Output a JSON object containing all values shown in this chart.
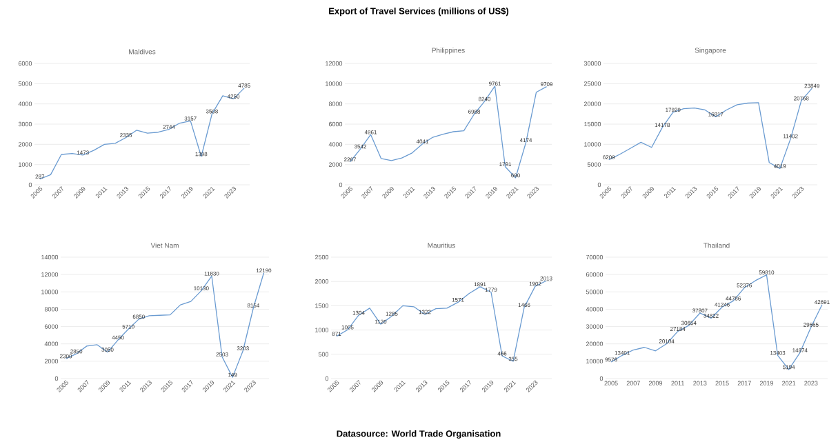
{
  "chart_data": [
    {
      "type": "line",
      "title": "Maldives",
      "annotations": [
        "Export of Travel Services (millions of US$)",
        "Datasource: World Trade Organisation"
      ],
      "categories": [
        "2005",
        null,
        "2007",
        null,
        "2009",
        null,
        "2011",
        null,
        "2013",
        null,
        "2015",
        null,
        "2017",
        null,
        "2019",
        null,
        "2021",
        null,
        "2023",
        null
      ],
      "values": [
        287,
        500,
        1500,
        1550,
        1473,
        1700,
        2000,
        2050,
        2335,
        2700,
        2550,
        2600,
        2744,
        3050,
        3157,
        1398,
        3508,
        4400,
        4250,
        4785
      ],
      "value_labels": [
        "287",
        null,
        null,
        null,
        "1473",
        null,
        null,
        null,
        "2335",
        null,
        null,
        null,
        "2744",
        null,
        "3157",
        "1398",
        "3508",
        null,
        "4250",
        "4785"
      ],
      "color": "#6a9bd1",
      "ylim": [
        0,
        6000
      ],
      "yticks": [
        0,
        1000,
        2000,
        3000,
        4000,
        5000,
        6000
      ],
      "grid": "y",
      "marker": "none",
      "line_style": "solid"
    },
    {
      "type": "line",
      "title": "Philippines",
      "categories": [
        "2005",
        null,
        "2007",
        null,
        "2009",
        null,
        "2011",
        null,
        "2013",
        null,
        "2015",
        null,
        "2017",
        null,
        "2019",
        null,
        "2021",
        null,
        "2023",
        null
      ],
      "values": [
        2267,
        3542,
        4961,
        2600,
        2400,
        2650,
        3150,
        4041,
        4700,
        5000,
        5250,
        5350,
        6988,
        8240,
        9761,
        1791,
        690,
        4174,
        9150,
        9709
      ],
      "value_labels": [
        "2267",
        "3542",
        "4961",
        null,
        null,
        null,
        null,
        "4041",
        null,
        null,
        null,
        null,
        "6988",
        "8240",
        "9761",
        "1791",
        "690",
        "4174",
        null,
        "9709"
      ],
      "color": "#6a9bd1",
      "ylim": [
        0,
        12000
      ],
      "yticks": [
        0,
        2000,
        4000,
        6000,
        8000,
        10000,
        12000
      ],
      "grid": "y",
      "marker": "none",
      "line_style": "solid"
    },
    {
      "type": "line",
      "title": "Singapore",
      "categories": [
        "2005",
        null,
        "2007",
        null,
        "2009",
        null,
        "2011",
        null,
        "2013",
        null,
        "2015",
        null,
        "2017",
        null,
        "2019",
        null,
        "2021",
        null,
        "2023",
        null
      ],
      "values": [
        6209,
        7500,
        9000,
        10500,
        9250,
        14178,
        17929,
        18800,
        19000,
        18500,
        16817,
        18500,
        19800,
        20200,
        20300,
        5500,
        4019,
        11402,
        20768,
        23849
      ],
      "value_labels": [
        "6209",
        null,
        null,
        null,
        null,
        "14178",
        "17929",
        null,
        null,
        null,
        "16817",
        null,
        null,
        null,
        null,
        null,
        "4019",
        "11402",
        "20768",
        "23849"
      ],
      "color": "#6a9bd1",
      "ylim": [
        0,
        30000
      ],
      "yticks": [
        0,
        5000,
        10000,
        15000,
        20000,
        25000,
        30000
      ],
      "grid": "y",
      "marker": "none",
      "line_style": "solid"
    },
    {
      "type": "line",
      "title": "Viet Nam",
      "categories": [
        "2005",
        null,
        "2007",
        null,
        "2009",
        null,
        "2011",
        null,
        "2013",
        null,
        "2015",
        null,
        "2017",
        null,
        "2019",
        null,
        "2021",
        null,
        "2023",
        null
      ],
      "values": [
        2300,
        2850,
        3750,
        3900,
        3050,
        4450,
        5710,
        6850,
        7250,
        7300,
        7350,
        8500,
        8900,
        10130,
        11830,
        2503,
        149,
        3203,
        8154,
        12190
      ],
      "value_labels": [
        "2300",
        "2850",
        null,
        null,
        "3050",
        "4450",
        "5710",
        "6850",
        null,
        null,
        null,
        null,
        null,
        "10130",
        "11830",
        "2503",
        "149",
        "3203",
        "8154",
        "12190"
      ],
      "color": "#6a9bd1",
      "ylim": [
        0,
        14000
      ],
      "yticks": [
        0,
        2000,
        4000,
        6000,
        8000,
        10000,
        12000,
        14000
      ],
      "grid": "y",
      "marker": "none",
      "line_style": "solid"
    },
    {
      "type": "line",
      "title": "Mauritius",
      "categories": [
        "2005",
        null,
        "2007",
        null,
        "2009",
        null,
        "2011",
        null,
        "2013",
        null,
        "2015",
        null,
        "2017",
        null,
        "2019",
        null,
        "2021",
        null,
        "2023",
        null
      ],
      "values": [
        871,
        1005,
        1304,
        1450,
        1120,
        1285,
        1500,
        1480,
        1322,
        1440,
        1450,
        1571,
        1750,
        1891,
        1779,
        466,
        355,
        1466,
        1902,
        2013
      ],
      "value_labels": [
        "871",
        "1005",
        "1304",
        null,
        "1120",
        "1285",
        null,
        null,
        "1322",
        null,
        null,
        "1571",
        null,
        "1891",
        "1779",
        "466",
        "355",
        "1466",
        "1902",
        "2013"
      ],
      "color": "#6a9bd1",
      "ylim": [
        0,
        2500
      ],
      "yticks": [
        0,
        500,
        1000,
        1500,
        2000,
        2500
      ],
      "grid": "y",
      "marker": "none",
      "line_style": "solid"
    },
    {
      "type": "line",
      "title": "Thailand",
      "categories": [
        "2005",
        null,
        "2007",
        null,
        "2009",
        null,
        "2011",
        null,
        "2013",
        null,
        "2015",
        null,
        "2017",
        null,
        "2019",
        null,
        "2021",
        null,
        "2023",
        null
      ],
      "values": [
        9576,
        13401,
        16500,
        18000,
        16000,
        20104,
        27184,
        30654,
        37807,
        34822,
        41246,
        44786,
        52376,
        56500,
        59810,
        13403,
        5194,
        14874,
        29665,
        42691
      ],
      "value_labels": [
        "9576",
        "13401",
        null,
        null,
        null,
        "20104",
        "27184",
        "30654",
        "37807",
        "34822",
        "41246",
        "44786",
        "52376",
        null,
        "59810",
        "13403",
        "5194",
        "14874",
        "29665",
        "42691"
      ],
      "color": "#6a9bd1",
      "ylim": [
        0,
        70000
      ],
      "yticks": [
        0,
        10000,
        20000,
        30000,
        40000,
        50000,
        60000,
        70000
      ],
      "grid": "y",
      "marker": "none",
      "line_style": "solid"
    }
  ]
}
